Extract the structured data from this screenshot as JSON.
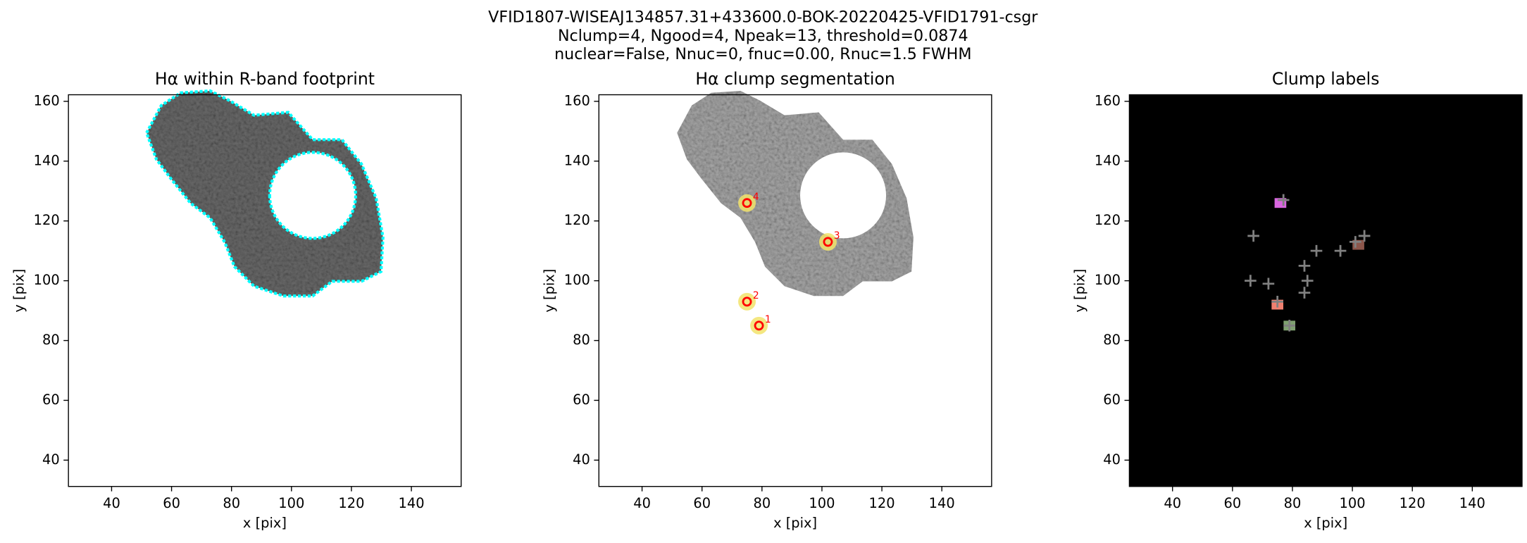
{
  "figure_title": [
    "VFID1807-WISEAJ134857.31+433600.0-BOK-20220425-VFID1791-csgr",
    "Nclump=4, Ngood=4, Npeak=13, threshold=0.0874",
    "nuclear=False, Nnuc=0, fnuc=0.00, Rnuc=1.5 FWHM"
  ],
  "chart_data": [
    {
      "type": "image",
      "title": "Hα within R-band footprint",
      "xlabel": "x [pix]",
      "ylabel": "y [pix]",
      "xlim": [
        25.6,
        156.6
      ],
      "ylim": [
        31.2,
        162.2
      ],
      "xticks": [
        40,
        60,
        80,
        100,
        120,
        140
      ],
      "yticks": [
        40,
        60,
        80,
        100,
        120,
        140,
        160
      ],
      "background": "#ffffff",
      "contour_color": "#00ffff"
    },
    {
      "type": "scatter",
      "title": "Hα clump segmentation",
      "xlabel": "x [pix]",
      "ylabel": "y [pix]",
      "xlim": [
        25.6,
        156.6
      ],
      "ylim": [
        31.2,
        162.2
      ],
      "xticks": [
        40,
        60,
        80,
        100,
        120,
        140
      ],
      "yticks": [
        40,
        60,
        80,
        100,
        120,
        140,
        160
      ],
      "background": "#ffffff",
      "series": [
        {
          "x": [
            75,
            102,
            75,
            79
          ],
          "y": [
            126,
            113,
            93,
            85
          ],
          "labels": [
            "4",
            "3",
            "2",
            "1"
          ],
          "color": "#ff0000",
          "marker": "circle"
        }
      ]
    },
    {
      "type": "scatter",
      "title": "Clump labels",
      "xlabel": "x [pix]",
      "ylabel": "y [pix]",
      "xlim": [
        25.6,
        156.6
      ],
      "ylim": [
        31.2,
        162.2
      ],
      "xticks": [
        40,
        60,
        80,
        100,
        120,
        140
      ],
      "yticks": [
        40,
        60,
        80,
        100,
        120,
        140,
        160
      ],
      "background": "#000000",
      "series": [
        {
          "x": [
            76,
            102,
            75,
            79
          ],
          "y": [
            126,
            112,
            92,
            85
          ],
          "colors": [
            "#d966e0",
            "#8c564b",
            "#f08070",
            "#7fa070"
          ],
          "marker": "square"
        },
        {
          "x": [
            67,
            66,
            72,
            84,
            88,
            85,
            84,
            96,
            101,
            104,
            77,
            79,
            75
          ],
          "y": [
            115,
            100,
            99,
            105,
            110,
            100,
            96,
            110,
            113,
            115,
            127,
            85,
            93
          ],
          "color": "#808080",
          "marker": "plus"
        }
      ]
    }
  ]
}
